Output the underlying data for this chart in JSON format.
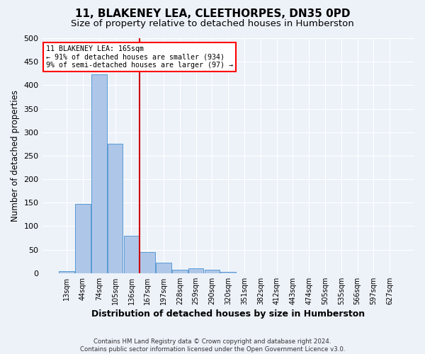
{
  "title": "11, BLAKENEY LEA, CLEETHORPES, DN35 0PD",
  "subtitle": "Size of property relative to detached houses in Humberston",
  "xlabel": "Distribution of detached houses by size in Humberston",
  "ylabel": "Number of detached properties",
  "footer_line1": "Contains HM Land Registry data © Crown copyright and database right 2024.",
  "footer_line2": "Contains public sector information licensed under the Open Government Licence v3.0.",
  "categories": [
    "13sqm",
    "44sqm",
    "74sqm",
    "105sqm",
    "136sqm",
    "167sqm",
    "197sqm",
    "228sqm",
    "259sqm",
    "290sqm",
    "320sqm",
    "351sqm",
    "382sqm",
    "412sqm",
    "443sqm",
    "474sqm",
    "505sqm",
    "535sqm",
    "566sqm",
    "597sqm",
    "627sqm"
  ],
  "bar_values": [
    5,
    148,
    423,
    275,
    80,
    45,
    22,
    8,
    11,
    8,
    2,
    0,
    0,
    0,
    0,
    0,
    0,
    0,
    0,
    0,
    0
  ],
  "bar_color": "#aec6e8",
  "bar_edge_color": "#5a9ad4",
  "vline_index": 5,
  "annotation_line1": "11 BLAKENEY LEA: 165sqm",
  "annotation_line2": "← 91% of detached houses are smaller (934)",
  "annotation_line3": "9% of semi-detached houses are larger (97) →",
  "vline_color": "#cc0000",
  "ylim": [
    0,
    500
  ],
  "yticks": [
    0,
    50,
    100,
    150,
    200,
    250,
    300,
    350,
    400,
    450,
    500
  ],
  "bg_color": "#edf2f9",
  "plot_bg_color": "#edf2f9",
  "grid_color": "#ffffff",
  "title_fontsize": 11,
  "subtitle_fontsize": 9.5,
  "xlabel_fontsize": 9,
  "ylabel_fontsize": 8.5
}
